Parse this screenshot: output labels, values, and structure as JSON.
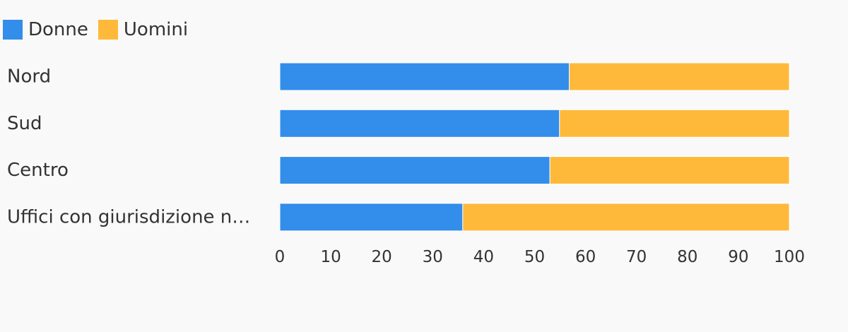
{
  "chart_data": {
    "type": "bar",
    "orientation": "horizontal",
    "stacked": true,
    "categories": [
      "Nord",
      "Sud",
      "Centro",
      "Uffici con giurisdizione n…"
    ],
    "series": [
      {
        "name": "Donne",
        "color": "#338deb",
        "values": [
          56.8,
          54.9,
          53.0,
          35.9
        ]
      },
      {
        "name": "Uomini",
        "color": "#ffb93a",
        "values": [
          43.2,
          45.1,
          47.0,
          64.1
        ]
      }
    ],
    "xlim": [
      0,
      100
    ],
    "xticks": [
      "0",
      "10",
      "20",
      "30",
      "40",
      "50",
      "60",
      "70",
      "80",
      "90",
      "100"
    ],
    "legend_position": "top-left",
    "grid": false
  }
}
